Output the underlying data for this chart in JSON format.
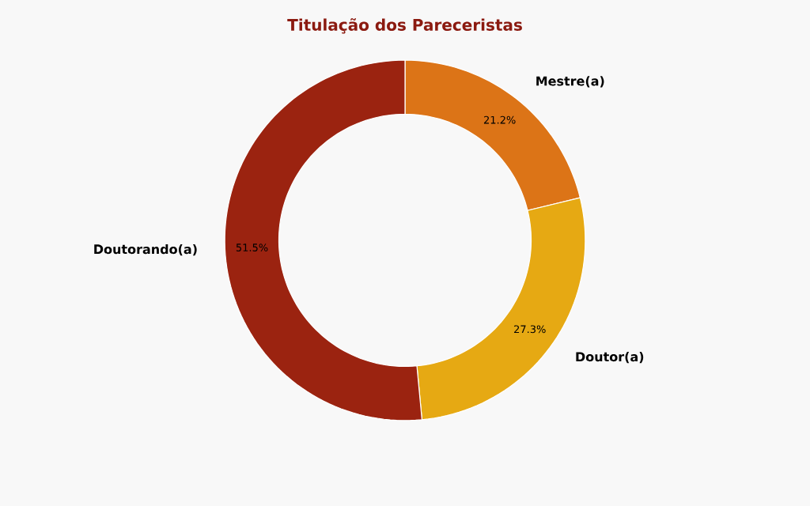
{
  "chart_data": {
    "type": "donut",
    "title": "Titulação dos Pareceristas",
    "categories": [
      "Mestre(a)",
      "Doutor(a)",
      "Doutorando(a)"
    ],
    "values": [
      21.2,
      27.3,
      51.5
    ],
    "colors": [
      "#dc7417",
      "#e6a913",
      "#9b2310"
    ],
    "value_labels": [
      "21.2%",
      "27.3%",
      "51.5%"
    ]
  }
}
